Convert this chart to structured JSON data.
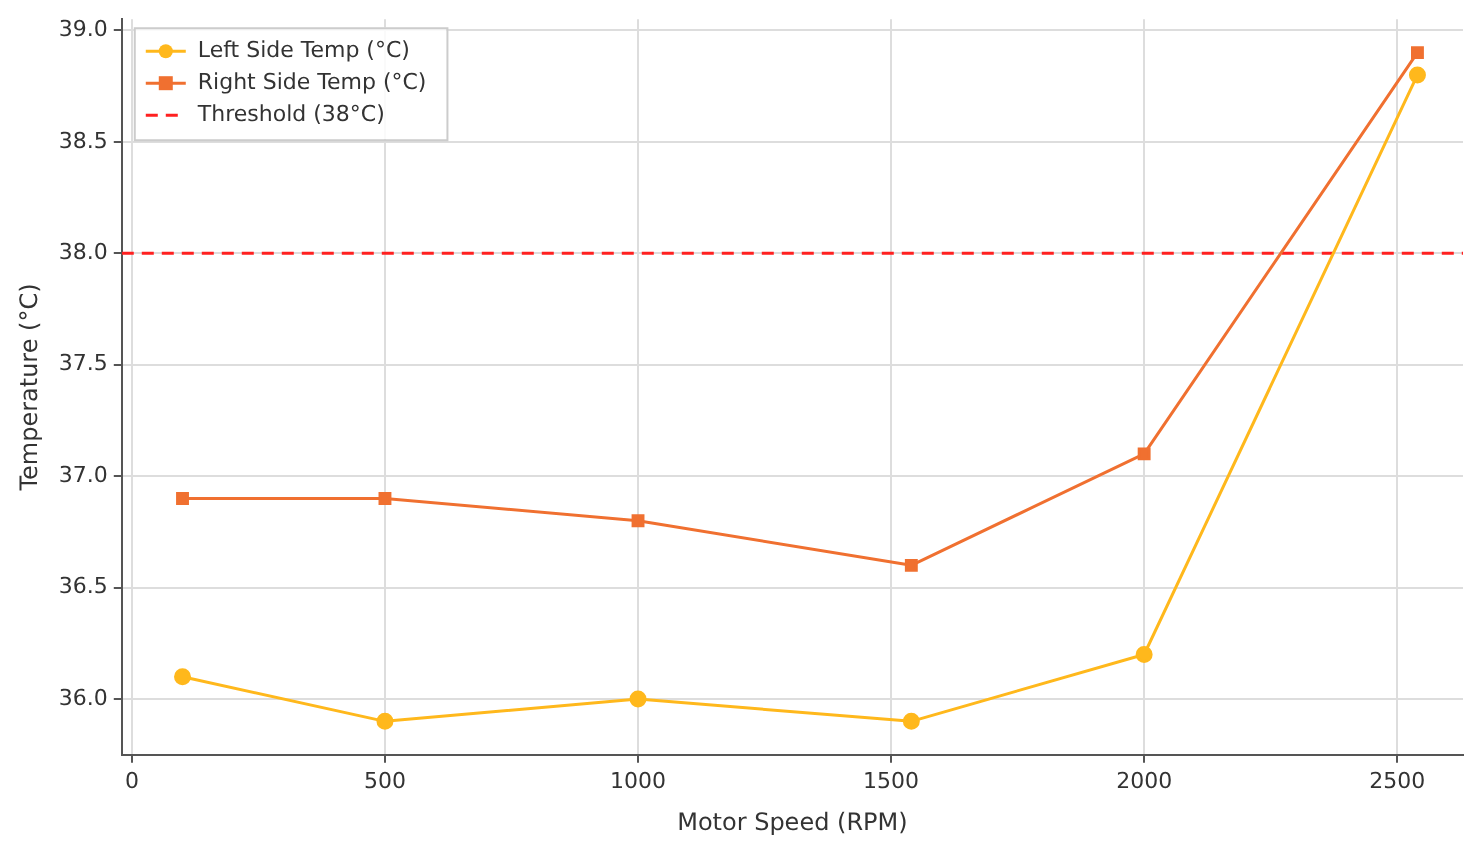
{
  "chart_data": {
    "type": "line",
    "xlabel": "Motor Speed (RPM)",
    "ylabel": "Temperature (°C)",
    "x": [
      100,
      500,
      1000,
      1540,
      2000,
      2540
    ],
    "series": [
      {
        "name": "Left Side Temp (°C)",
        "color": "#ffb81c",
        "marker": "circle",
        "values": [
          36.1,
          35.9,
          36.0,
          35.9,
          36.2,
          38.8
        ]
      },
      {
        "name": "Right Side Temp (°C)",
        "color": "#f07030",
        "marker": "square",
        "values": [
          36.9,
          36.9,
          36.8,
          36.6,
          37.1,
          38.9
        ]
      }
    ],
    "ref_lines": [
      {
        "axis": "y",
        "value": 38,
        "label": "Threshold (38°C)",
        "color": "#ff2020",
        "line_style": "dashed"
      }
    ],
    "xlim": [
      -20,
      2630
    ],
    "xticks": [
      0,
      500,
      1000,
      1500,
      2000,
      2500
    ],
    "ylim": [
      35.75,
      39.05
    ],
    "yticks": [
      {
        "value": 36,
        "label": "36.0"
      },
      {
        "value": 36.5,
        "label": "36.5"
      },
      {
        "value": 37,
        "label": "37.0"
      },
      {
        "value": 37.5,
        "label": "37.5"
      },
      {
        "value": 38,
        "label": "38.0"
      },
      {
        "value": 38.5,
        "label": "38.5"
      },
      {
        "value": 39,
        "label": "39.0"
      }
    ],
    "grid": true,
    "legend": "top left",
    "line_style": "solid"
  }
}
